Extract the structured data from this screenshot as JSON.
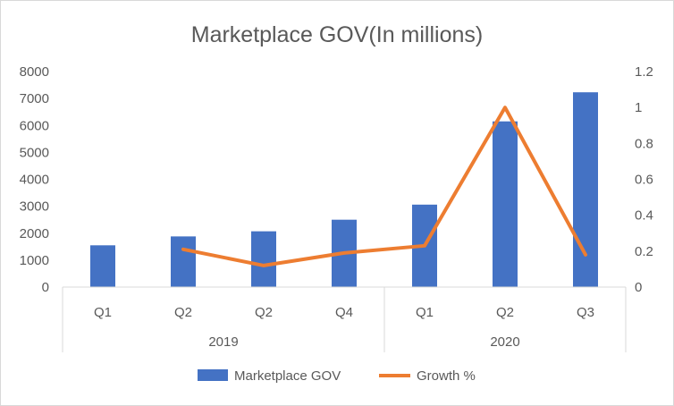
{
  "chart_data": {
    "type": "bar",
    "title": "Marketplace GOV(In millions)",
    "categories": [
      "Q1",
      "Q2",
      "Q2",
      "Q4",
      "Q1",
      "Q2",
      "Q3"
    ],
    "groups": [
      {
        "label": "2019",
        "count": 4
      },
      {
        "label": "2020",
        "count": 3
      }
    ],
    "series": [
      {
        "name": "Marketplace GOV",
        "type": "bar",
        "axis": "left",
        "color": "#4472c4",
        "values": [
          1550,
          1880,
          2070,
          2500,
          3060,
          6150,
          7230
        ]
      },
      {
        "name": "Growth %",
        "type": "line",
        "axis": "right",
        "color": "#ed7d31",
        "values": [
          null,
          0.21,
          0.12,
          0.19,
          0.23,
          1.0,
          0.18
        ]
      }
    ],
    "ylim_left": [
      0,
      8000
    ],
    "yticks_left": [
      0,
      1000,
      2000,
      3000,
      4000,
      5000,
      6000,
      7000,
      8000
    ],
    "ylim_right": [
      0,
      1.2
    ],
    "yticks_right": [
      0,
      0.2,
      0.4,
      0.6,
      0.8,
      1,
      1.2
    ],
    "grid": false,
    "legend": "bottom"
  }
}
